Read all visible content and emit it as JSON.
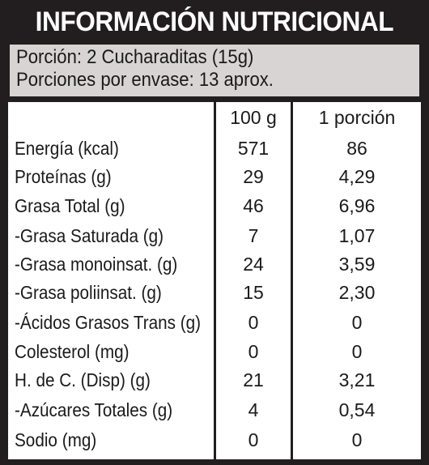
{
  "title": "INFORMACIÓN NUTRICIONAL",
  "portion": {
    "serving": "Porción: 2 Cucharaditas (15g)",
    "servings_per_package": "Porciones por envase: 13 aprox."
  },
  "columns": {
    "per_100g": "100 g",
    "per_portion": "1 porción"
  },
  "rows": [
    {
      "name": "Energía (kcal)",
      "per_100g": "571",
      "per_portion": "86"
    },
    {
      "name": "Proteínas (g)",
      "per_100g": "29",
      "per_portion": "4,29"
    },
    {
      "name": "Grasa Total (g)",
      "per_100g": "46",
      "per_portion": "6,96"
    },
    {
      "name": "-Grasa Saturada (g)",
      "per_100g": "7",
      "per_portion": "1,07"
    },
    {
      "name": "-Grasa monoinsat. (g)",
      "per_100g": "24",
      "per_portion": "3,59"
    },
    {
      "name": "-Grasa poliinsat. (g)",
      "per_100g": "15",
      "per_portion": "2,30"
    },
    {
      "name": "-Ácidos Grasos Trans (g)",
      "per_100g": "0",
      "per_portion": "0"
    },
    {
      "name": "Colesterol (mg)",
      "per_100g": "0",
      "per_portion": "0"
    },
    {
      "name": "H. de C. (Disp) (g)",
      "per_100g": "21",
      "per_portion": "3,21"
    },
    {
      "name": "-Azúcares Totales (g)",
      "per_100g": "4",
      "per_portion": "0,54"
    },
    {
      "name": "Sodio (mg)",
      "per_100g": "0",
      "per_portion": "0"
    }
  ],
  "colors": {
    "dark": "#221e1f",
    "portion_background": "#d7d4d3",
    "text": "#1a1a1a"
  }
}
